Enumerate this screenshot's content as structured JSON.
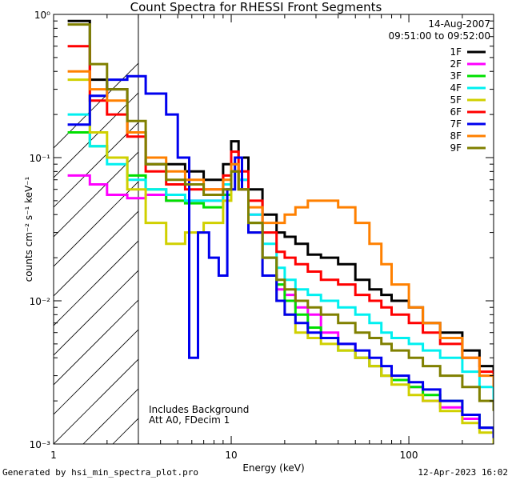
{
  "chart_data": {
    "type": "line",
    "title": "Count Spectra for RHESSI Front Segments",
    "xlabel": "Energy (keV)",
    "ylabel": "counts cm⁻² s⁻¹ keV⁻¹",
    "xscale": "log",
    "yscale": "log",
    "xlim": [
      1.0,
      300
    ],
    "ylim": [
      0.001,
      1.0
    ],
    "x_ticks": [
      "1",
      "10",
      "100"
    ],
    "y_ticks": [
      "10⁰",
      "10⁻¹",
      "10⁻²",
      "10⁻³"
    ],
    "date": "14-Aug-2007",
    "time_range": "09:51:00 to 09:52:00",
    "annotations": [
      "Includes Background",
      "Att A0, FDecim 1"
    ],
    "shaded_region": {
      "x": [
        1.0,
        3.0
      ],
      "style": "hatched"
    },
    "legend_position": "top-right",
    "series": [
      {
        "name": "1F",
        "color": "#000000",
        "x": [
          1.2,
          1.6,
          2.0,
          2.6,
          3.3,
          4.3,
          5.5,
          7.0,
          9.0,
          10.0,
          11.0,
          12.5,
          15,
          18,
          20,
          23,
          27,
          32,
          40,
          50,
          60,
          70,
          80,
          100,
          120,
          150,
          200,
          250,
          300
        ],
        "y": [
          0.9,
          0.35,
          0.3,
          0.15,
          0.09,
          0.09,
          0.08,
          0.07,
          0.09,
          0.13,
          0.1,
          0.06,
          0.04,
          0.03,
          0.028,
          0.025,
          0.021,
          0.02,
          0.018,
          0.014,
          0.012,
          0.011,
          0.01,
          0.009,
          0.007,
          0.006,
          0.0045,
          0.0035,
          0.003
        ]
      },
      {
        "name": "2F",
        "color": "#ff00ff",
        "x": [
          1.2,
          1.6,
          2.0,
          2.6,
          3.3,
          4.3,
          5.5,
          7.0,
          9.0,
          10.0,
          11.0,
          12.5,
          15,
          18,
          20,
          23,
          27,
          32,
          40,
          50,
          60,
          70,
          80,
          100,
          120,
          150,
          200,
          250,
          300
        ],
        "y": [
          0.075,
          0.065,
          0.055,
          0.052,
          0.055,
          0.05,
          0.05,
          0.05,
          0.06,
          0.08,
          0.07,
          0.04,
          0.02,
          0.012,
          0.011,
          0.009,
          0.008,
          0.006,
          0.005,
          0.004,
          0.0035,
          0.003,
          0.0028,
          0.0025,
          0.002,
          0.0018,
          0.0015,
          0.0013,
          0.0012
        ]
      },
      {
        "name": "3F",
        "color": "#00e000",
        "x": [
          1.2,
          1.6,
          2.0,
          2.6,
          3.3,
          4.3,
          5.5,
          7.0,
          9.0,
          10.0,
          11.0,
          12.5,
          15,
          18,
          20,
          23,
          27,
          32,
          40,
          50,
          60,
          70,
          80,
          100,
          120,
          150,
          200,
          250,
          300
        ],
        "y": [
          0.15,
          0.12,
          0.1,
          0.075,
          0.06,
          0.05,
          0.048,
          0.045,
          0.055,
          0.08,
          0.06,
          0.035,
          0.02,
          0.013,
          0.01,
          0.008,
          0.0065,
          0.0055,
          0.0045,
          0.004,
          0.0035,
          0.003,
          0.0028,
          0.0025,
          0.0022,
          0.002,
          0.0016,
          0.0013,
          0.0011
        ]
      },
      {
        "name": "4F",
        "color": "#00f0f0",
        "x": [
          1.2,
          1.6,
          2.0,
          2.6,
          3.3,
          4.3,
          5.5,
          7.0,
          9.0,
          10.0,
          11.0,
          12.5,
          15,
          18,
          20,
          23,
          27,
          32,
          40,
          50,
          60,
          70,
          80,
          100,
          120,
          150,
          200,
          250,
          300
        ],
        "y": [
          0.2,
          0.12,
          0.09,
          0.07,
          0.06,
          0.055,
          0.05,
          0.05,
          0.065,
          0.09,
          0.07,
          0.04,
          0.025,
          0.017,
          0.014,
          0.012,
          0.011,
          0.01,
          0.009,
          0.008,
          0.007,
          0.006,
          0.0055,
          0.005,
          0.0045,
          0.004,
          0.0032,
          0.0025,
          0.002
        ]
      },
      {
        "name": "5F",
        "color": "#d0d000",
        "x": [
          1.2,
          1.6,
          2.0,
          2.6,
          3.3,
          4.3,
          5.5,
          7.0,
          9.0,
          10.0,
          11.0,
          12.5,
          15,
          18,
          20,
          23,
          27,
          32,
          40,
          50,
          60,
          70,
          80,
          100,
          120,
          150,
          200,
          250,
          300
        ],
        "y": [
          0.35,
          0.15,
          0.1,
          0.06,
          0.035,
          0.025,
          0.03,
          0.035,
          0.05,
          0.08,
          0.06,
          0.03,
          0.015,
          0.01,
          0.008,
          0.006,
          0.0055,
          0.005,
          0.0045,
          0.004,
          0.0035,
          0.003,
          0.0026,
          0.0022,
          0.002,
          0.0017,
          0.0014,
          0.0012,
          0.001
        ]
      },
      {
        "name": "6F",
        "color": "#ff0000",
        "x": [
          1.2,
          1.6,
          2.0,
          2.6,
          3.3,
          4.3,
          5.5,
          7.0,
          9.0,
          10.0,
          11.0,
          12.5,
          15,
          18,
          20,
          23,
          27,
          32,
          40,
          50,
          60,
          70,
          80,
          100,
          120,
          150,
          200,
          250,
          300
        ],
        "y": [
          0.6,
          0.25,
          0.2,
          0.14,
          0.08,
          0.065,
          0.06,
          0.06,
          0.075,
          0.11,
          0.08,
          0.05,
          0.03,
          0.022,
          0.02,
          0.018,
          0.016,
          0.014,
          0.013,
          0.011,
          0.01,
          0.009,
          0.008,
          0.007,
          0.006,
          0.005,
          0.004,
          0.0032,
          0.0026
        ]
      },
      {
        "name": "7F",
        "color": "#0000ee",
        "x": [
          1.2,
          1.6,
          2.0,
          2.6,
          3.3,
          4.3,
          5.0,
          5.8,
          6.5,
          7.5,
          8.5,
          9.5,
          10.5,
          11.5,
          12.5,
          15,
          18,
          20,
          23,
          27,
          32,
          40,
          50,
          60,
          70,
          80,
          100,
          120,
          150,
          200,
          250,
          300
        ],
        "y": [
          0.17,
          0.27,
          0.35,
          0.37,
          0.28,
          0.2,
          0.1,
          0.004,
          0.03,
          0.02,
          0.015,
          0.06,
          0.1,
          0.06,
          0.03,
          0.015,
          0.01,
          0.008,
          0.007,
          0.006,
          0.0055,
          0.005,
          0.0045,
          0.004,
          0.0035,
          0.003,
          0.0027,
          0.0024,
          0.002,
          0.0016,
          0.0013,
          0.0011
        ]
      },
      {
        "name": "8F",
        "color": "#ff8000",
        "x": [
          1.2,
          1.6,
          2.0,
          2.6,
          3.3,
          4.3,
          5.5,
          7.0,
          9.0,
          10.0,
          11.0,
          12.5,
          15,
          18,
          20,
          23,
          27,
          32,
          40,
          50,
          60,
          70,
          80,
          100,
          120,
          150,
          200,
          250,
          300
        ],
        "y": [
          0.4,
          0.3,
          0.25,
          0.15,
          0.1,
          0.08,
          0.07,
          0.06,
          0.07,
          0.09,
          0.06,
          0.045,
          0.035,
          0.035,
          0.04,
          0.045,
          0.05,
          0.05,
          0.045,
          0.035,
          0.025,
          0.018,
          0.013,
          0.009,
          0.007,
          0.0055,
          0.004,
          0.003,
          0.0025
        ]
      },
      {
        "name": "9F",
        "color": "#808000",
        "x": [
          1.2,
          1.6,
          2.0,
          2.6,
          3.3,
          4.3,
          5.5,
          7.0,
          9.0,
          10.0,
          11.0,
          12.5,
          15,
          18,
          20,
          23,
          27,
          32,
          40,
          50,
          60,
          70,
          80,
          100,
          120,
          150,
          200,
          250,
          300
        ],
        "y": [
          0.85,
          0.45,
          0.3,
          0.18,
          0.09,
          0.07,
          0.065,
          0.055,
          0.06,
          0.08,
          0.06,
          0.035,
          0.02,
          0.014,
          0.012,
          0.01,
          0.009,
          0.008,
          0.007,
          0.006,
          0.0055,
          0.005,
          0.0045,
          0.004,
          0.0035,
          0.003,
          0.0025,
          0.002,
          0.0017
        ]
      }
    ]
  },
  "footer": {
    "left": "Generated by hsi_min_spectra_plot.pro",
    "right": "12-Apr-2023 16:02"
  }
}
